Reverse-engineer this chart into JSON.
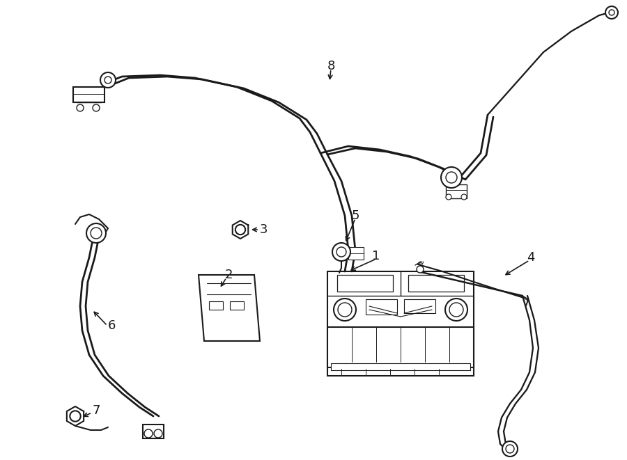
{
  "bg_color": "#ffffff",
  "line_color": "#1a1a1a",
  "lw_thin": 1.0,
  "lw_med": 1.5,
  "lw_thick": 2.2,
  "label_fs": 13
}
